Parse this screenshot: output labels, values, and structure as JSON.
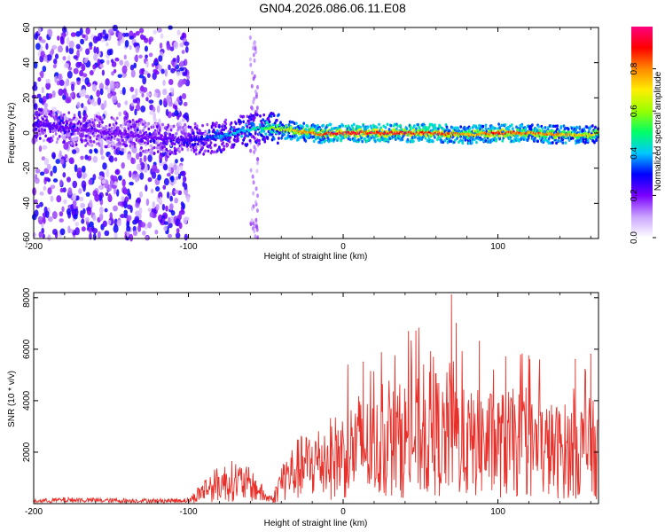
{
  "title": "GN04.2026.086.06.11.E08",
  "chart_data": [
    {
      "type": "heatmap",
      "xlabel": "Height of straight line (km)",
      "ylabel": "Frequency (Hz)",
      "xlim": [
        -200,
        165
      ],
      "ylim": [
        -60,
        60
      ],
      "xticks": [
        -200,
        -100,
        0,
        100
      ],
      "yticks": [
        -60,
        -40,
        -20,
        0,
        20,
        40,
        60
      ],
      "colorbar": {
        "label": "Normalized spectral amplitude",
        "range": [
          0,
          1
        ],
        "ticks": [
          "0.0",
          "0.2",
          "0.4",
          "0.6",
          "0.8"
        ],
        "colors": [
          "#ffffff",
          "#c9a3ff",
          "#7a00ff",
          "#0000ff",
          "#00c8ff",
          "#00ff66",
          "#99ff00",
          "#ffee00",
          "#ff8800",
          "#ff0000",
          "#ff0080"
        ]
      },
      "ridge": {
        "x": [
          -200,
          -180,
          -160,
          -140,
          -120,
          -100,
          -80,
          -60,
          -50,
          -40,
          -30,
          -20,
          -15,
          -10,
          0,
          20,
          40,
          60,
          80,
          100,
          120,
          140,
          160,
          165
        ],
        "freq_hz": [
          5,
          3,
          1,
          -1,
          -3,
          -4,
          -2,
          2,
          3,
          2,
          1,
          0,
          -1,
          0,
          0,
          0,
          0,
          0,
          -1,
          0,
          0,
          -1,
          -1,
          0
        ],
        "amplitude": [
          0.25,
          0.22,
          0.2,
          0.2,
          0.22,
          0.25,
          0.4,
          0.45,
          0.55,
          0.7,
          0.8,
          0.85,
          0.85,
          0.9,
          0.95,
          0.95,
          0.92,
          0.95,
          0.8,
          0.9,
          0.85,
          0.8,
          0.75,
          0.7
        ]
      },
      "noise_region": {
        "x": [
          -200,
          -100
        ],
        "freq_hz": [
          -60,
          60
        ],
        "amplitude": 0.2
      },
      "noise_streak": {
        "x": [
          -60,
          -55
        ],
        "freq_hz": [
          -60,
          60
        ],
        "amplitude": 0.1
      }
    },
    {
      "type": "line",
      "xlabel": "Height of straight line (km)",
      "ylabel": "SNR (10 * v/v)",
      "xlim": [
        -200,
        165
      ],
      "ylim": [
        0,
        8200
      ],
      "xticks": [
        -200,
        -100,
        0,
        100
      ],
      "yticks": [
        2000,
        4000,
        6000,
        8000
      ],
      "color": "#e8302a",
      "envelope": {
        "x": [
          -200,
          -180,
          -150,
          -120,
          -100,
          -95,
          -90,
          -80,
          -70,
          -60,
          -55,
          -50,
          -45,
          -40,
          -30,
          -20,
          -10,
          0,
          10,
          20,
          30,
          40,
          50,
          60,
          65,
          70,
          75,
          80,
          90,
          100,
          110,
          120,
          130,
          140,
          150,
          160,
          165
        ],
        "y": [
          120,
          180,
          150,
          140,
          160,
          500,
          900,
          1300,
          1500,
          1200,
          900,
          400,
          300,
          1500,
          2200,
          2600,
          2900,
          3200,
          3800,
          3500,
          3900,
          4200,
          4300,
          4600,
          4000,
          5200,
          4000,
          3800,
          3900,
          3800,
          3900,
          3700,
          3500,
          3400,
          3500,
          3600,
          3300
        ]
      },
      "peaks": [
        {
          "x": 47,
          "y": 6700
        },
        {
          "x": 70,
          "y": 8100
        },
        {
          "x": 73,
          "y": 7000
        },
        {
          "x": 88,
          "y": 6300
        },
        {
          "x": 13,
          "y": 5500
        },
        {
          "x": 105,
          "y": 5700
        },
        {
          "x": 150,
          "y": 5600
        },
        {
          "x": 160,
          "y": 5800
        },
        {
          "x": 163,
          "y": 300
        }
      ]
    }
  ]
}
